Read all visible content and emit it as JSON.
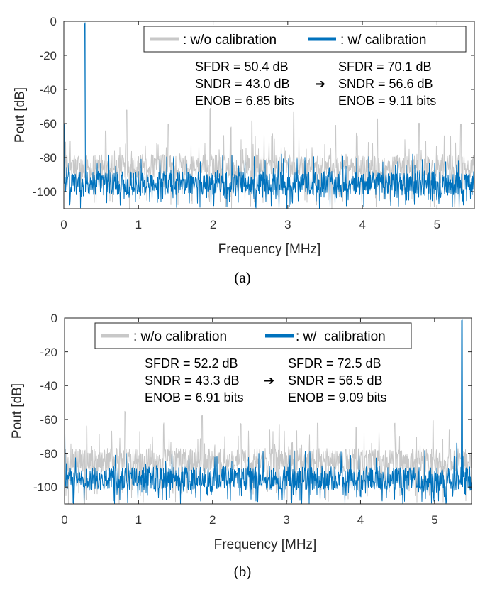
{
  "chart_data": [
    {
      "type": "line",
      "caption": "(a)",
      "xlabel": "Frequency [MHz]",
      "ylabel": "Pout [dB]",
      "xlim": [
        0,
        5.5
      ],
      "ylim": [
        -110,
        0
      ],
      "x_ticks": [
        "0",
        "1",
        "2",
        "3",
        "4",
        "5"
      ],
      "y_ticks": [
        "0",
        "-20",
        "-40",
        "-60",
        "-80",
        "-100"
      ],
      "grid": false,
      "legend_position": "top-right",
      "legend": [
        {
          "label": ": w/o calibration",
          "color": "#c8c8c8"
        },
        {
          "label": ": w/ calibration",
          "color": "#0072bd"
        }
      ],
      "signal_freq_mhz": 0.28,
      "series": [
        {
          "name": ": w/o calibration",
          "color": "#c8c8c8",
          "noise_floor_db": -85,
          "noise_min_db": -110,
          "noise_max_db": -66,
          "spurs": [
            {
              "x": 0.84,
              "y": -52
            },
            {
              "x": 1.4,
              "y": -59
            },
            {
              "x": 1.96,
              "y": -50
            },
            {
              "x": 2.52,
              "y": -57
            },
            {
              "x": 3.08,
              "y": -53
            },
            {
              "x": 3.64,
              "y": -60
            },
            {
              "x": 4.2,
              "y": -57
            },
            {
              "x": 4.76,
              "y": -58
            },
            {
              "x": 5.32,
              "y": -60
            },
            {
              "x": 0.56,
              "y": -63
            },
            {
              "x": 2.24,
              "y": -62
            },
            {
              "x": 3.92,
              "y": -65
            }
          ]
        },
        {
          "name": ": w/ calibration",
          "color": "#0072bd",
          "noise_floor_db": -95,
          "noise_min_db": -110,
          "noise_max_db": -78,
          "spurs": [
            {
              "x": 0.28,
              "y": 0
            },
            {
              "x": 0.0,
              "y": -60
            }
          ]
        }
      ],
      "annotations": {
        "before": [
          "SFDR = 50.4 dB",
          "SNDR = 43.0 dB",
          "ENOB = 6.85 bits"
        ],
        "after": [
          "SFDR = 70.1 dB",
          "SNDR = 56.6 dB",
          "ENOB = 9.11 bits"
        ],
        "arrow": "➔"
      }
    },
    {
      "type": "line",
      "caption": "(b)",
      "xlabel": "Frequency [MHz]",
      "ylabel": "Pout [dB]",
      "xlim": [
        0,
        5.5
      ],
      "ylim": [
        -110,
        0
      ],
      "x_ticks": [
        "0",
        "1",
        "2",
        "3",
        "4",
        "5"
      ],
      "y_ticks": [
        "0",
        "-20",
        "-40",
        "-60",
        "-80",
        "-100"
      ],
      "grid": false,
      "legend_position": "top-right",
      "legend": [
        {
          "label": ": w/o calibration",
          "color": "#c8c8c8"
        },
        {
          "label": ": w/  calibration",
          "color": "#0072bd"
        }
      ],
      "signal_freq_mhz": 5.37,
      "series": [
        {
          "name": ": w/o calibration",
          "color": "#c8c8c8",
          "noise_floor_db": -84,
          "noise_min_db": -110,
          "noise_max_db": -66,
          "spurs": [
            {
              "x": 0.3,
              "y": -63
            },
            {
              "x": 0.82,
              "y": -55
            },
            {
              "x": 1.34,
              "y": -62
            },
            {
              "x": 1.86,
              "y": -57
            },
            {
              "x": 2.38,
              "y": -62
            },
            {
              "x": 2.9,
              "y": -63
            },
            {
              "x": 3.42,
              "y": -61
            },
            {
              "x": 3.94,
              "y": -64
            },
            {
              "x": 4.46,
              "y": -62
            },
            {
              "x": 4.98,
              "y": -59
            },
            {
              "x": 5.2,
              "y": -66
            }
          ]
        },
        {
          "name": ": w/  calibration",
          "color": "#0072bd",
          "noise_floor_db": -95,
          "noise_min_db": -110,
          "noise_max_db": -78,
          "spurs": [
            {
              "x": 5.37,
              "y": 0
            },
            {
              "x": 0.0,
              "y": -68
            },
            {
              "x": 5.3,
              "y": -73
            }
          ]
        }
      ],
      "annotations": {
        "before": [
          "SFDR = 52.2 dB",
          "SNDR = 43.3 dB",
          "ENOB = 6.91 bits"
        ],
        "after": [
          "SFDR = 72.5 dB",
          "SNDR = 56.5 dB",
          "ENOB = 9.09 bits"
        ],
        "arrow": "➔"
      }
    }
  ]
}
